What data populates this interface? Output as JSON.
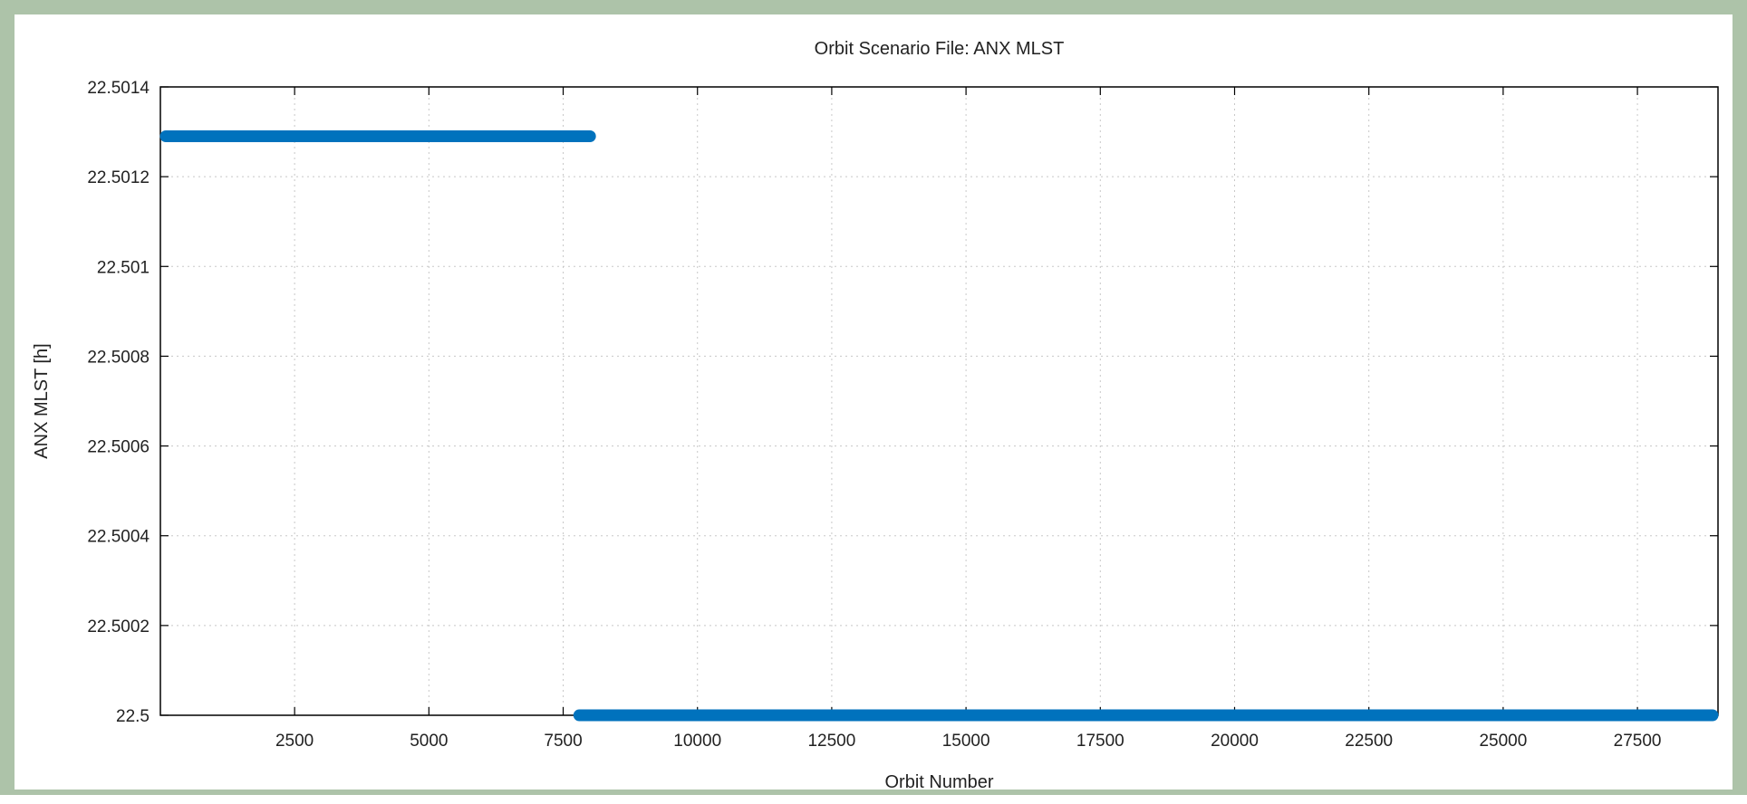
{
  "colors": {
    "frame": "#adc3a9",
    "series": "#0072bd",
    "grid": "#c8c8c8",
    "axis": "#000000"
  },
  "chart_data": {
    "type": "scatter",
    "title": "Orbit Scenario File: ANX MLST",
    "xlabel": "Orbit Number",
    "ylabel": "ANX MLST [h]",
    "xlim": [
      1,
      29000
    ],
    "ylim": [
      22.5,
      22.5014
    ],
    "xticks": [
      2500,
      5000,
      7500,
      10000,
      12500,
      15000,
      17500,
      20000,
      22500,
      25000,
      27500
    ],
    "xtick_labels": [
      "2500",
      "5000",
      "7500",
      "10000",
      "12500",
      "15000",
      "17500",
      "20000",
      "22500",
      "25000",
      "27500"
    ],
    "yticks": [
      22.5,
      22.5002,
      22.5004,
      22.5006,
      22.5008,
      22.501,
      22.5012,
      22.5014
    ],
    "ytick_labels": [
      "22.5",
      "22.5002",
      "22.5004",
      "22.5006",
      "22.5008",
      "22.501",
      "22.5012",
      "22.5014"
    ],
    "grid": true,
    "series": [
      {
        "segments": [
          {
            "x_start": 1,
            "x_end": 8000,
            "y": 22.50129
          },
          {
            "x_start": 7800,
            "x_end": 29000,
            "y": 22.5
          }
        ]
      }
    ]
  }
}
